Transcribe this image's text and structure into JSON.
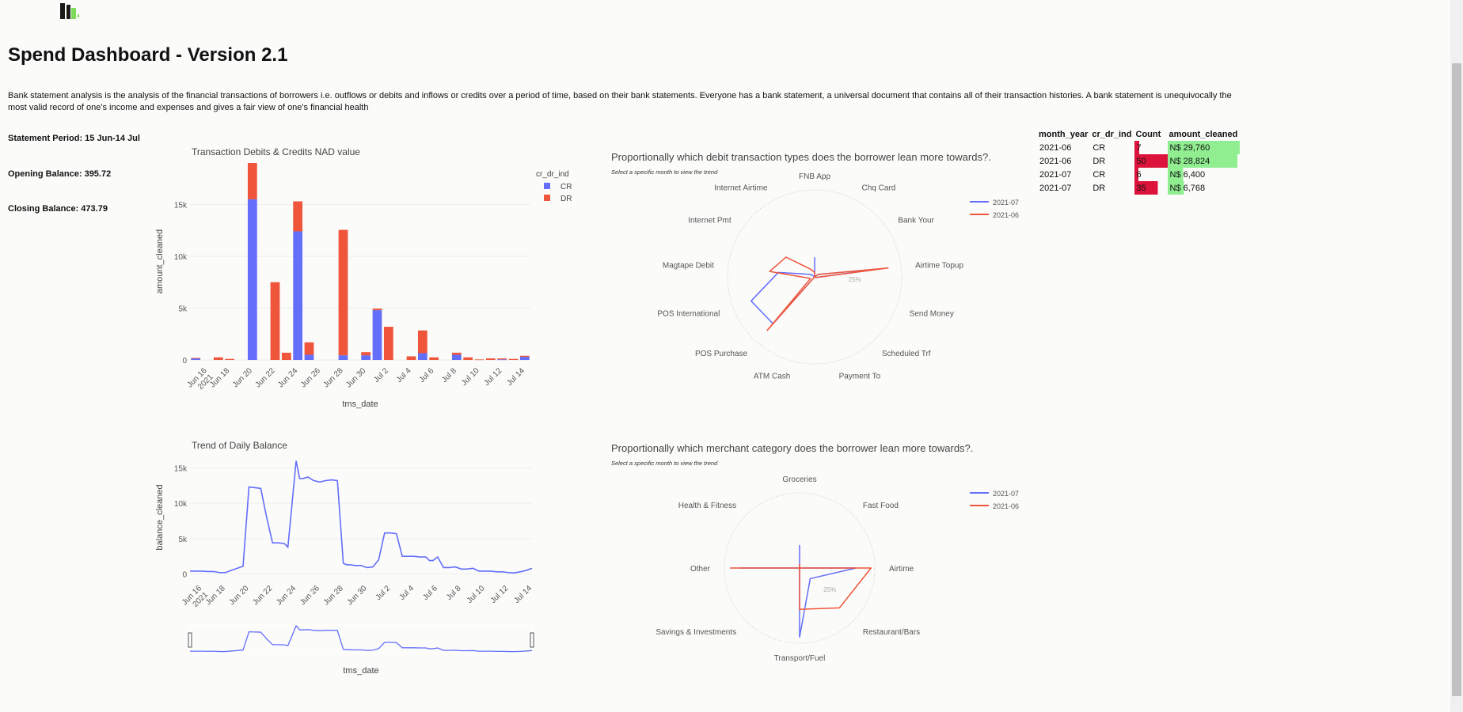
{
  "page": {
    "title": "Spend Dashboard - Version 2.1",
    "description": "Bank statement analysis is the analysis of the financial transactions of borrowers i.e. outflows or debits and inflows or credits over a period of time, based on their bank statements. Everyone has a bank statement, a universal document that contains all of their transaction histories. A bank statement is unequivocally the most valid record of one's income and expenses and gives a fair view of one's financial health",
    "statement_period": "Statement Period: 15 Jun-14 Jul",
    "opening_balance": "Opening Balance: 395.72",
    "closing_balance": "Closing Balance: 473.79"
  },
  "colors": {
    "cr": "#636efa",
    "dr": "#ef553b",
    "bar_green": "#90ee90",
    "bar_crimson": "#dc143c"
  },
  "summary_table": {
    "headers": [
      "month_year",
      "cr_dr_ind",
      "Count",
      "amount_cleaned"
    ],
    "rows": [
      [
        "2021-06",
        "CR",
        "7",
        "N$ 29,760"
      ],
      [
        "2021-06",
        "DR",
        "50",
        "N$ 28,824"
      ],
      [
        "2021-07",
        "CR",
        "6",
        "N$ 6,400"
      ],
      [
        "2021-07",
        "DR",
        "35",
        "N$ 6,768"
      ]
    ]
  },
  "chart_data": [
    {
      "type": "bar",
      "title": "Transaction Debits & Credits NAD value",
      "xlabel": "tms_date",
      "ylabel": "amount_cleaned",
      "legend_title": "cr_dr_ind",
      "legend_position": "top-right",
      "stacked": true,
      "ylim": [
        0,
        19000
      ],
      "y_ticks": [
        "0",
        "5k",
        "10k",
        "15k"
      ],
      "x_ticks": [
        "Jun 16\n2021",
        "Jun 18",
        "Jun 20",
        "Jun 22",
        "Jun 24",
        "Jun 26",
        "Jun 28",
        "Jun 30",
        "Jul 2",
        "Jul 4",
        "Jul 6",
        "Jul 8",
        "Jul 10",
        "Jul 12",
        "Jul 14"
      ],
      "categories": [
        "Jun 15",
        "Jun 16",
        "Jun 17",
        "Jun 18",
        "Jun 19",
        "Jun 20",
        "Jun 21",
        "Jun 22",
        "Jun 23",
        "Jun 24",
        "Jun 25",
        "Jun 26",
        "Jun 27",
        "Jun 28",
        "Jun 29",
        "Jun 30",
        "Jul 1",
        "Jul 2",
        "Jul 3",
        "Jul 4",
        "Jul 5",
        "Jul 6",
        "Jul 7",
        "Jul 8",
        "Jul 9",
        "Jul 10",
        "Jul 11",
        "Jul 12",
        "Jul 13",
        "Jul 14"
      ],
      "series": [
        {
          "name": "CR",
          "values": [
            150,
            0,
            0,
            0,
            0,
            15500,
            0,
            0,
            0,
            12400,
            500,
            0,
            0,
            450,
            0,
            450,
            4800,
            0,
            0,
            0,
            650,
            0,
            0,
            500,
            0,
            0,
            0,
            50,
            0,
            300
          ]
        },
        {
          "name": "DR",
          "values": [
            50,
            0,
            250,
            100,
            0,
            3500,
            0,
            7500,
            700,
            2900,
            1200,
            0,
            0,
            12100,
            0,
            300,
            150,
            3200,
            0,
            350,
            2200,
            250,
            0,
            200,
            250,
            50,
            150,
            100,
            100,
            100
          ]
        }
      ]
    },
    {
      "type": "line",
      "title": "Trend of Daily Balance",
      "xlabel": "tms_date",
      "ylabel": "balance_cleaned",
      "ylim": [
        -500,
        16500
      ],
      "y_ticks": [
        "0",
        "5k",
        "10k",
        "15k"
      ],
      "x_ticks": [
        "Jun 16\n2021",
        "Jun 18",
        "Jun 20",
        "Jun 22",
        "Jun 24",
        "Jun 26",
        "Jun 28",
        "Jun 30",
        "Jul 2",
        "Jul 4",
        "Jul 6",
        "Jul 8",
        "Jul 10",
        "Jul 12",
        "Jul 14"
      ],
      "has_range_slider": true,
      "x": [
        15,
        15.5,
        16,
        16.5,
        17,
        17.5,
        18,
        18.5,
        19,
        19.5,
        20,
        20.5,
        21,
        21.5,
        22,
        22.5,
        23,
        23.3,
        23.6,
        24,
        24.3,
        24.6,
        25,
        25.5,
        26,
        26.5,
        27,
        27.5,
        28,
        28.3,
        28.6,
        29,
        29.5,
        30,
        30.5,
        31,
        31.5,
        32,
        32.5,
        33,
        33.5,
        34,
        34.5,
        35,
        35.3,
        35.6,
        36,
        36.5,
        37,
        37.5,
        38,
        38.5,
        39,
        39.5,
        40,
        40.5,
        41,
        41.5,
        42,
        42.5,
        43,
        43.5,
        44
      ],
      "y": [
        400,
        400,
        400,
        350,
        350,
        200,
        200,
        500,
        800,
        1100,
        12300,
        12200,
        12100,
        8000,
        4400,
        4400,
        4300,
        3800,
        9000,
        16000,
        13500,
        13500,
        13700,
        13200,
        13000,
        13200,
        13300,
        13200,
        1500,
        1300,
        1300,
        1200,
        1200,
        900,
        1000,
        2000,
        5800,
        5800,
        5700,
        2500,
        2500,
        2500,
        2400,
        2400,
        1900,
        1900,
        2400,
        900,
        900,
        1000,
        700,
        700,
        800,
        400,
        400,
        400,
        300,
        300,
        200,
        150,
        300,
        500,
        800
      ]
    },
    {
      "type": "radar",
      "title": "Proportionally which debit transaction types does the borrower lean more towards?.",
      "subtitle": "Select a specific month to view the trend",
      "legend_position": "top-right",
      "categories": [
        "FNB App",
        "Chq Card",
        "Bank Your",
        "Airtime Topup",
        "Send Money",
        "Scheduled Trf",
        "Payment To",
        "ATM Cash",
        "POS Purchase",
        "POS International",
        "Magtape Debit",
        "Internet Pmt",
        "Internet Airtime"
      ],
      "radial_tick_label": "25%",
      "series": [
        {
          "name": "2021-07",
          "values": [
            0.22,
            0.0,
            0.05,
            0.78,
            0.02,
            0.0,
            0.0,
            0.0,
            0.72,
            0.78,
            0.42,
            0.05,
            0.0
          ]
        },
        {
          "name": "2021-06",
          "values": [
            0.05,
            0.0,
            0.05,
            0.85,
            0.02,
            0.0,
            0.0,
            0.0,
            0.82,
            0.05,
            0.52,
            0.4,
            0.1
          ]
        }
      ]
    },
    {
      "type": "radar",
      "title": "Proportionally which merchant category does the borrower lean more towards?.",
      "subtitle": "Select a specific month to view the trend",
      "legend_position": "top-right",
      "categories": [
        "Groceries",
        "Fast Food",
        "Airtime",
        "Restaurant/Bars",
        "Transport/Fuel",
        "Savings & Investments",
        "Other",
        "Health & Fitness"
      ],
      "radial_tick_label": "25%",
      "series": [
        {
          "name": "2021-07",
          "values": [
            0.3,
            0.0,
            0.75,
            0.2,
            0.92,
            0.0,
            0.8,
            0.0
          ]
        },
        {
          "name": "2021-06",
          "values": [
            0.05,
            0.0,
            0.95,
            0.75,
            0.55,
            0.0,
            0.92,
            0.0
          ]
        }
      ]
    }
  ]
}
